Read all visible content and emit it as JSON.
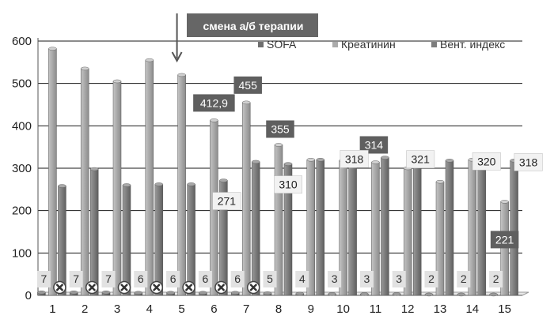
{
  "chart_data": {
    "type": "bar",
    "title": "",
    "xlabel": "",
    "ylabel": "",
    "ylim": [
      0,
      600
    ],
    "yticks": [
      "0",
      "100",
      "200",
      "300",
      "400",
      "500",
      "600"
    ],
    "categories": [
      "1",
      "2",
      "3",
      "4",
      "5",
      "6",
      "7",
      "8",
      "9",
      "10",
      "11",
      "12",
      "13",
      "14",
      "15"
    ],
    "grid": true,
    "legend_position": "top-right",
    "series": [
      {
        "name": "SOFA",
        "color": "#6e6e6e",
        "values": [
          7,
          7,
          7,
          6,
          6,
          6,
          6,
          5,
          4,
          3,
          3,
          3,
          2,
          2,
          2
        ],
        "labels": [
          "7",
          "7",
          "7",
          "6",
          "6",
          "6",
          "6",
          "5",
          "4",
          "3",
          "3",
          "3",
          "2",
          "2",
          "2"
        ]
      },
      {
        "name": "Креатинин",
        "color": "#ababab",
        "values": [
          582,
          535,
          505,
          555,
          520,
          412.9,
          455,
          355,
          320,
          318,
          314,
          300,
          268,
          320,
          221
        ]
      },
      {
        "name": "Вент. индекс",
        "color": "#7d7d7d",
        "values": [
          258,
          298,
          260,
          262,
          262,
          271,
          315,
          310,
          320,
          318,
          325,
          321,
          318,
          320,
          318
        ]
      }
    ],
    "value_labels": [
      {
        "category": "6",
        "text": "412,9",
        "style": "dark"
      },
      {
        "category": "7",
        "text": "455",
        "style": "dark"
      },
      {
        "category": "8",
        "text": "355",
        "style": "dark"
      },
      {
        "category": "11",
        "text": "314",
        "style": "dark"
      },
      {
        "category": "15",
        "text": "221",
        "style": "dark"
      },
      {
        "category": "6",
        "text": "271",
        "style": "light"
      },
      {
        "category": "8",
        "text": "310",
        "style": "light"
      },
      {
        "category": "10",
        "text": "318",
        "style": "light"
      },
      {
        "category": "12",
        "text": "321",
        "style": "light"
      },
      {
        "category": "14",
        "text": "320",
        "style": "light"
      },
      {
        "category": "15",
        "text": "318",
        "style": "light"
      }
    ],
    "markers": {
      "icon": "x-circle-icon",
      "categories": [
        "1",
        "2",
        "3",
        "4",
        "5",
        "6",
        "7"
      ]
    },
    "annotation": {
      "text": "смена а/б терапии",
      "category": "5",
      "icon": "arrow-down-icon"
    }
  }
}
